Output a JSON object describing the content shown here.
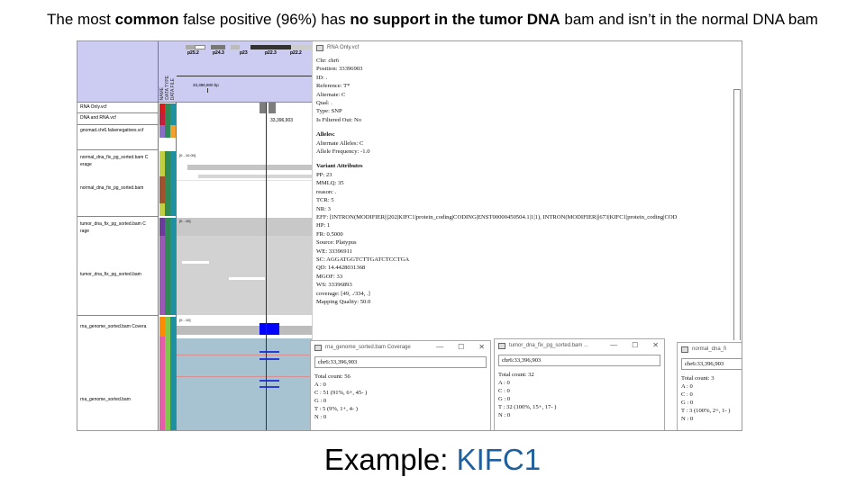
{
  "headline": {
    "part1": "The most ",
    "bold1": "common",
    "part2": " false positive (96%) has ",
    "bold2": "no support in the tumor DNA",
    "part3": " bam and isn’t in the normal DNA bam"
  },
  "caption": {
    "prefix": "Example: ",
    "gene": "KIFC1"
  },
  "colors": {
    "accent_gene": "#1f5f9e",
    "ruler_bg": "#cccbf1",
    "rna_bg": "#a7c3d2",
    "highlight": "#0000ff"
  },
  "igv": {
    "tracks": [
      {
        "name": "RNA Only.vcf"
      },
      {
        "name": "DNA and RNA.vcf"
      },
      {
        "name": "gnomad.chr6.falsenegatives.vcf"
      },
      {
        "name": "normal_dna_fix_pg_sorted.bam C"
      },
      {
        "name": "erage"
      },
      {
        "name": "normal_dna_fix_pg_sorted.bam"
      },
      {
        "name": "tumor_dna_fix_pg_sorted.bam C"
      },
      {
        "name": "rage"
      },
      {
        "name": "tumor_dna_fix_pg_sorted.bam"
      },
      {
        "name": "rna_genome_sorted.bam Covera"
      },
      {
        "name": "rna_genome_sorted.bam"
      }
    ],
    "attr_headers": [
      "NAME",
      "DATA TYPE",
      "DATA FILE"
    ],
    "bands": [
      "p25.2",
      "p24.3",
      "p23",
      "p22.3",
      "p22.2"
    ],
    "ruler_text": "33,396,900 bp",
    "position_label": "33,396,903",
    "scales": [
      "[0 - 10.00]",
      "[0 - 10]",
      "[0 - 10]"
    ]
  },
  "variant_popup": {
    "title": "RNA Only.vcf",
    "fields_top": [
      "Chr: chr6",
      "Position: 33396903",
      "ID: .",
      "Reference: T*",
      "Alternate: C",
      "Qual: .",
      "Type: SNP",
      "Is Filtered Out: No"
    ],
    "alleles_heading": "Alleles:",
    "alleles": [
      "Alternate Alleles: C",
      "Allele Frequency: -1.0"
    ],
    "attributes_heading": "Variant Attributes",
    "attributes": [
      "PP: 23",
      "MMLQ: 35",
      "reason: .",
      "TCR: 5",
      "NR: 3",
      "EFF: [INTRON(MODIFIER|||202|KIFC1|protein_coding|CODING|ENST00000450504.1|1|1), INTRON(MODIFIER|||673|KIFC1|protein_coding|COD",
      "HP: 1",
      "FR: 0.5000",
      "Source: Platypus",
      "WE: 33396911",
      "SC: AGGATGGTCTTGATCTCCTGA",
      "QD: 14.4428031368",
      "MGOF: 33",
      "WS: 33396893",
      "coverage: [49, ./334, .]",
      "Mapping Quality: 50.0"
    ]
  },
  "coverage_popups": [
    {
      "title": "rna_genome_sorted.bam Coverage",
      "locus": "chr6:33,396,903",
      "lines": [
        "Total count: 56",
        "A : 0",
        "C : 51 (91%, 6+, 45- )",
        "G : 0",
        "T : 5 (9%, 1+, 4- )",
        "N : 0"
      ]
    },
    {
      "title": "tumor_dna_fix_pg_sorted.bam ...",
      "locus": "chr6:33,396,903",
      "lines": [
        "Total count: 32",
        "A : 0",
        "C : 0",
        "G : 0",
        "T : 32 (100%, 15+, 17- )",
        "N : 0"
      ]
    },
    {
      "title": "normal_dna_fi",
      "locus": "chr6:33,396,903",
      "lines": [
        "Total count: 3",
        "A : 0",
        "C : 0",
        "G : 0",
        "T : 3 (100%, 2+, 1- )",
        "N : 0"
      ]
    }
  ],
  "window_controls": {
    "minimize": "—",
    "maximize": "☐",
    "close": "✕"
  }
}
